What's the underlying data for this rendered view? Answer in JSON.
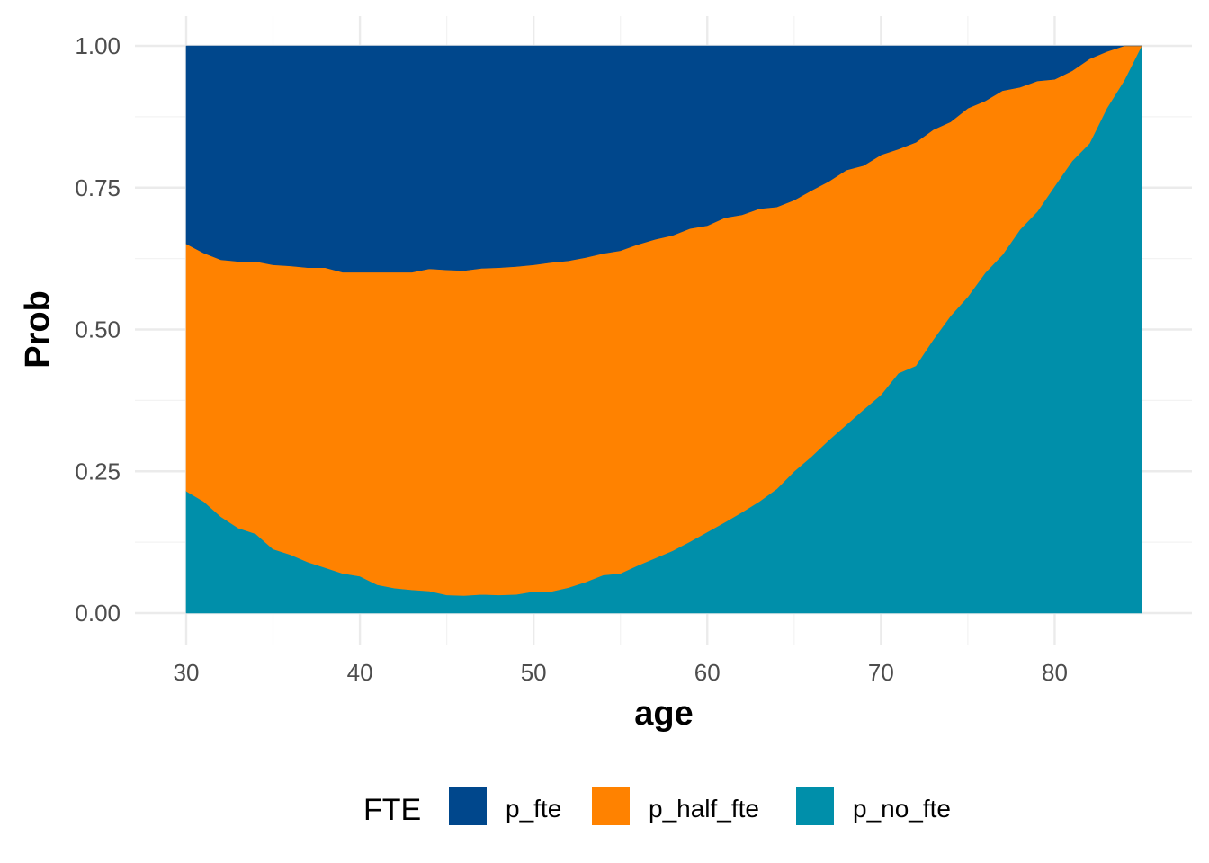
{
  "chart_data": {
    "type": "area",
    "stacked": "fill",
    "xlabel": "age",
    "ylabel": "Prob",
    "xlim": [
      30,
      85
    ],
    "ylim": [
      0,
      1
    ],
    "x_ticks": [
      30,
      40,
      50,
      60,
      70,
      80
    ],
    "y_ticks": [
      "0.00",
      "0.25",
      "0.50",
      "0.75",
      "1.00"
    ],
    "grid": true,
    "legend": {
      "title": "FTE",
      "position": "bottom"
    },
    "x": [
      30,
      31,
      32,
      33,
      34,
      35,
      36,
      37,
      38,
      39,
      40,
      41,
      42,
      43,
      44,
      45,
      46,
      47,
      48,
      49,
      50,
      51,
      52,
      53,
      54,
      55,
      56,
      57,
      58,
      59,
      60,
      61,
      62,
      63,
      64,
      65,
      66,
      67,
      68,
      69,
      70,
      71,
      72,
      73,
      74,
      75,
      76,
      77,
      78,
      79,
      80,
      81,
      82,
      83,
      84,
      85
    ],
    "series": [
      {
        "name": "p_no_fte",
        "color": "#008FAA",
        "values": [
          0.215,
          0.197,
          0.17,
          0.15,
          0.14,
          0.113,
          0.103,
          0.09,
          0.08,
          0.07,
          0.065,
          0.05,
          0.044,
          0.041,
          0.039,
          0.032,
          0.031,
          0.033,
          0.032,
          0.033,
          0.038,
          0.038,
          0.045,
          0.055,
          0.067,
          0.07,
          0.084,
          0.097,
          0.11,
          0.126,
          0.143,
          0.16,
          0.178,
          0.197,
          0.219,
          0.25,
          0.276,
          0.305,
          0.332,
          0.359,
          0.385,
          0.423,
          0.436,
          0.482,
          0.524,
          0.558,
          0.6,
          0.632,
          0.676,
          0.708,
          0.753,
          0.797,
          0.828,
          0.89,
          0.939,
          1.0
        ]
      },
      {
        "name": "p_half_fte",
        "color": "#FF8200",
        "values": [
          0.436,
          0.438,
          0.453,
          0.47,
          0.48,
          0.501,
          0.509,
          0.519,
          0.529,
          0.531,
          0.536,
          0.551,
          0.557,
          0.56,
          0.568,
          0.573,
          0.573,
          0.575,
          0.577,
          0.578,
          0.576,
          0.58,
          0.576,
          0.572,
          0.567,
          0.569,
          0.566,
          0.562,
          0.556,
          0.552,
          0.54,
          0.537,
          0.524,
          0.516,
          0.497,
          0.478,
          0.469,
          0.456,
          0.449,
          0.43,
          0.423,
          0.395,
          0.394,
          0.37,
          0.342,
          0.332,
          0.303,
          0.289,
          0.251,
          0.23,
          0.188,
          0.159,
          0.149,
          0.1,
          0.061,
          0.0
        ]
      },
      {
        "name": "p_fte",
        "color": "#00478C",
        "values": [
          0.349,
          0.365,
          0.377,
          0.38,
          0.38,
          0.386,
          0.388,
          0.391,
          0.391,
          0.399,
          0.399,
          0.399,
          0.399,
          0.399,
          0.393,
          0.395,
          0.396,
          0.392,
          0.391,
          0.389,
          0.386,
          0.382,
          0.379,
          0.373,
          0.366,
          0.361,
          0.35,
          0.341,
          0.334,
          0.322,
          0.317,
          0.303,
          0.298,
          0.287,
          0.284,
          0.272,
          0.255,
          0.239,
          0.219,
          0.211,
          0.192,
          0.182,
          0.17,
          0.148,
          0.134,
          0.11,
          0.097,
          0.079,
          0.073,
          0.062,
          0.059,
          0.044,
          0.023,
          0.01,
          0.0,
          0.0
        ]
      }
    ]
  }
}
